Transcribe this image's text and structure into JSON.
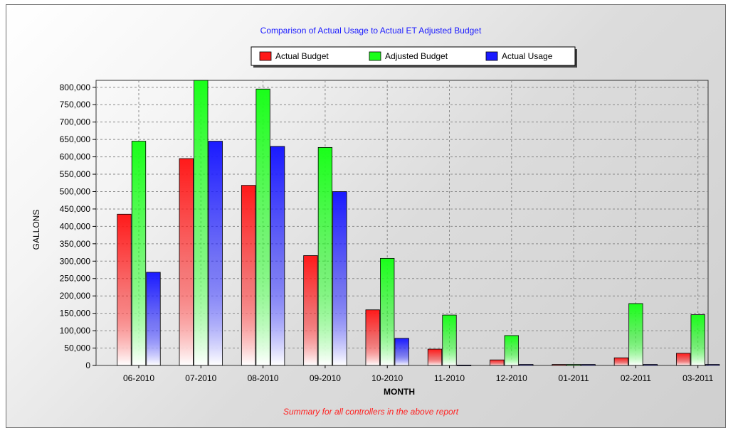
{
  "chart_data": {
    "type": "bar",
    "title": "Comparison of Actual Usage to Actual ET Adjusted Budget",
    "subtitle": "Summary for all controllers in the above report",
    "xlabel": "MONTH",
    "ylabel": "GALLONS",
    "categories": [
      "06-2010",
      "07-2010",
      "08-2010",
      "09-2010",
      "10-2010",
      "11-2010",
      "12-2010",
      "01-2011",
      "02-2011",
      "03-2011"
    ],
    "ylim": [
      0,
      820000
    ],
    "yticks": [
      0,
      50000,
      100000,
      150000,
      200000,
      250000,
      300000,
      350000,
      400000,
      450000,
      500000,
      550000,
      600000,
      650000,
      700000,
      750000,
      800000
    ],
    "ytick_labels": [
      "0",
      "50,000",
      "100,000",
      "150,000",
      "200,000",
      "250,000",
      "300,000",
      "350,000",
      "400,000",
      "450,000",
      "500,000",
      "550,000",
      "600,000",
      "650,000",
      "700,000",
      "750,000",
      "800,000"
    ],
    "grid": true,
    "legend_position": "top-center",
    "series": [
      {
        "name": "Actual Budget",
        "color": "#ff1a1a",
        "values": [
          435000,
          595000,
          518000,
          316000,
          160000,
          47000,
          16000,
          3000,
          22000,
          35000
        ]
      },
      {
        "name": "Adjusted Budget",
        "color": "#1aff1a",
        "values": [
          645000,
          820000,
          795000,
          627000,
          308000,
          145000,
          86000,
          3000,
          178000,
          146000
        ]
      },
      {
        "name": "Actual Usage",
        "color": "#1a1aff",
        "values": [
          268000,
          645000,
          630000,
          500000,
          78000,
          1000,
          3000,
          3000,
          3000,
          3000
        ]
      }
    ]
  }
}
